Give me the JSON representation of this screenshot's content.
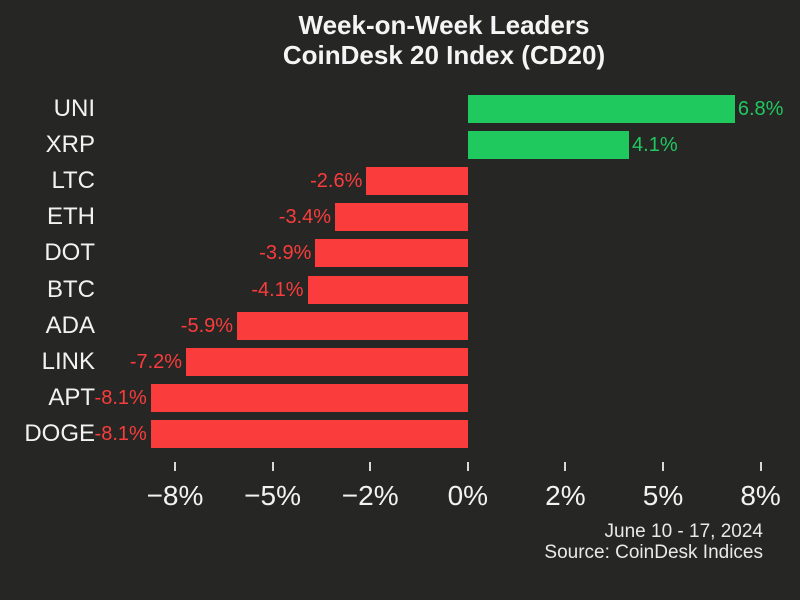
{
  "title": {
    "line1": "Week-on-Week Leaders",
    "line2": "CoinDesk 20 Index (CD20)"
  },
  "footer": {
    "date_range": "June 10 - 17, 2024",
    "source": "Source: CoinDesk Indices"
  },
  "chart_data": {
    "type": "bar",
    "orientation": "horizontal",
    "title": "Week-on-Week Leaders — CoinDesk 20 Index (CD20)",
    "categories": [
      "UNI",
      "XRP",
      "LTC",
      "ETH",
      "DOT",
      "BTC",
      "ADA",
      "LINK",
      "APT",
      "DOGE"
    ],
    "values": [
      6.8,
      4.1,
      -2.6,
      -3.4,
      -3.9,
      -4.1,
      -5.9,
      -7.2,
      -8.1,
      -8.1
    ],
    "value_labels": [
      "6.8%",
      "4.1%",
      "-2.6%",
      "-3.4%",
      "-3.9%",
      "-4.1%",
      "-5.9%",
      "-7.2%",
      "-8.1%",
      "-8.1%"
    ],
    "x_tick_labels": [
      "−8%",
      "−5%",
      "−2%",
      "0%",
      "2%",
      "5%",
      "8%"
    ],
    "x_tick_values": [
      -8,
      -5,
      -2,
      0,
      2,
      5,
      8
    ],
    "xlim": [
      -8.7,
      8.5
    ],
    "grid": false,
    "legend": "none",
    "colors": {
      "positive": "#1fc95e",
      "negative": "#fa3c3c",
      "background": "#262625",
      "text": "#f2f2f2"
    }
  }
}
